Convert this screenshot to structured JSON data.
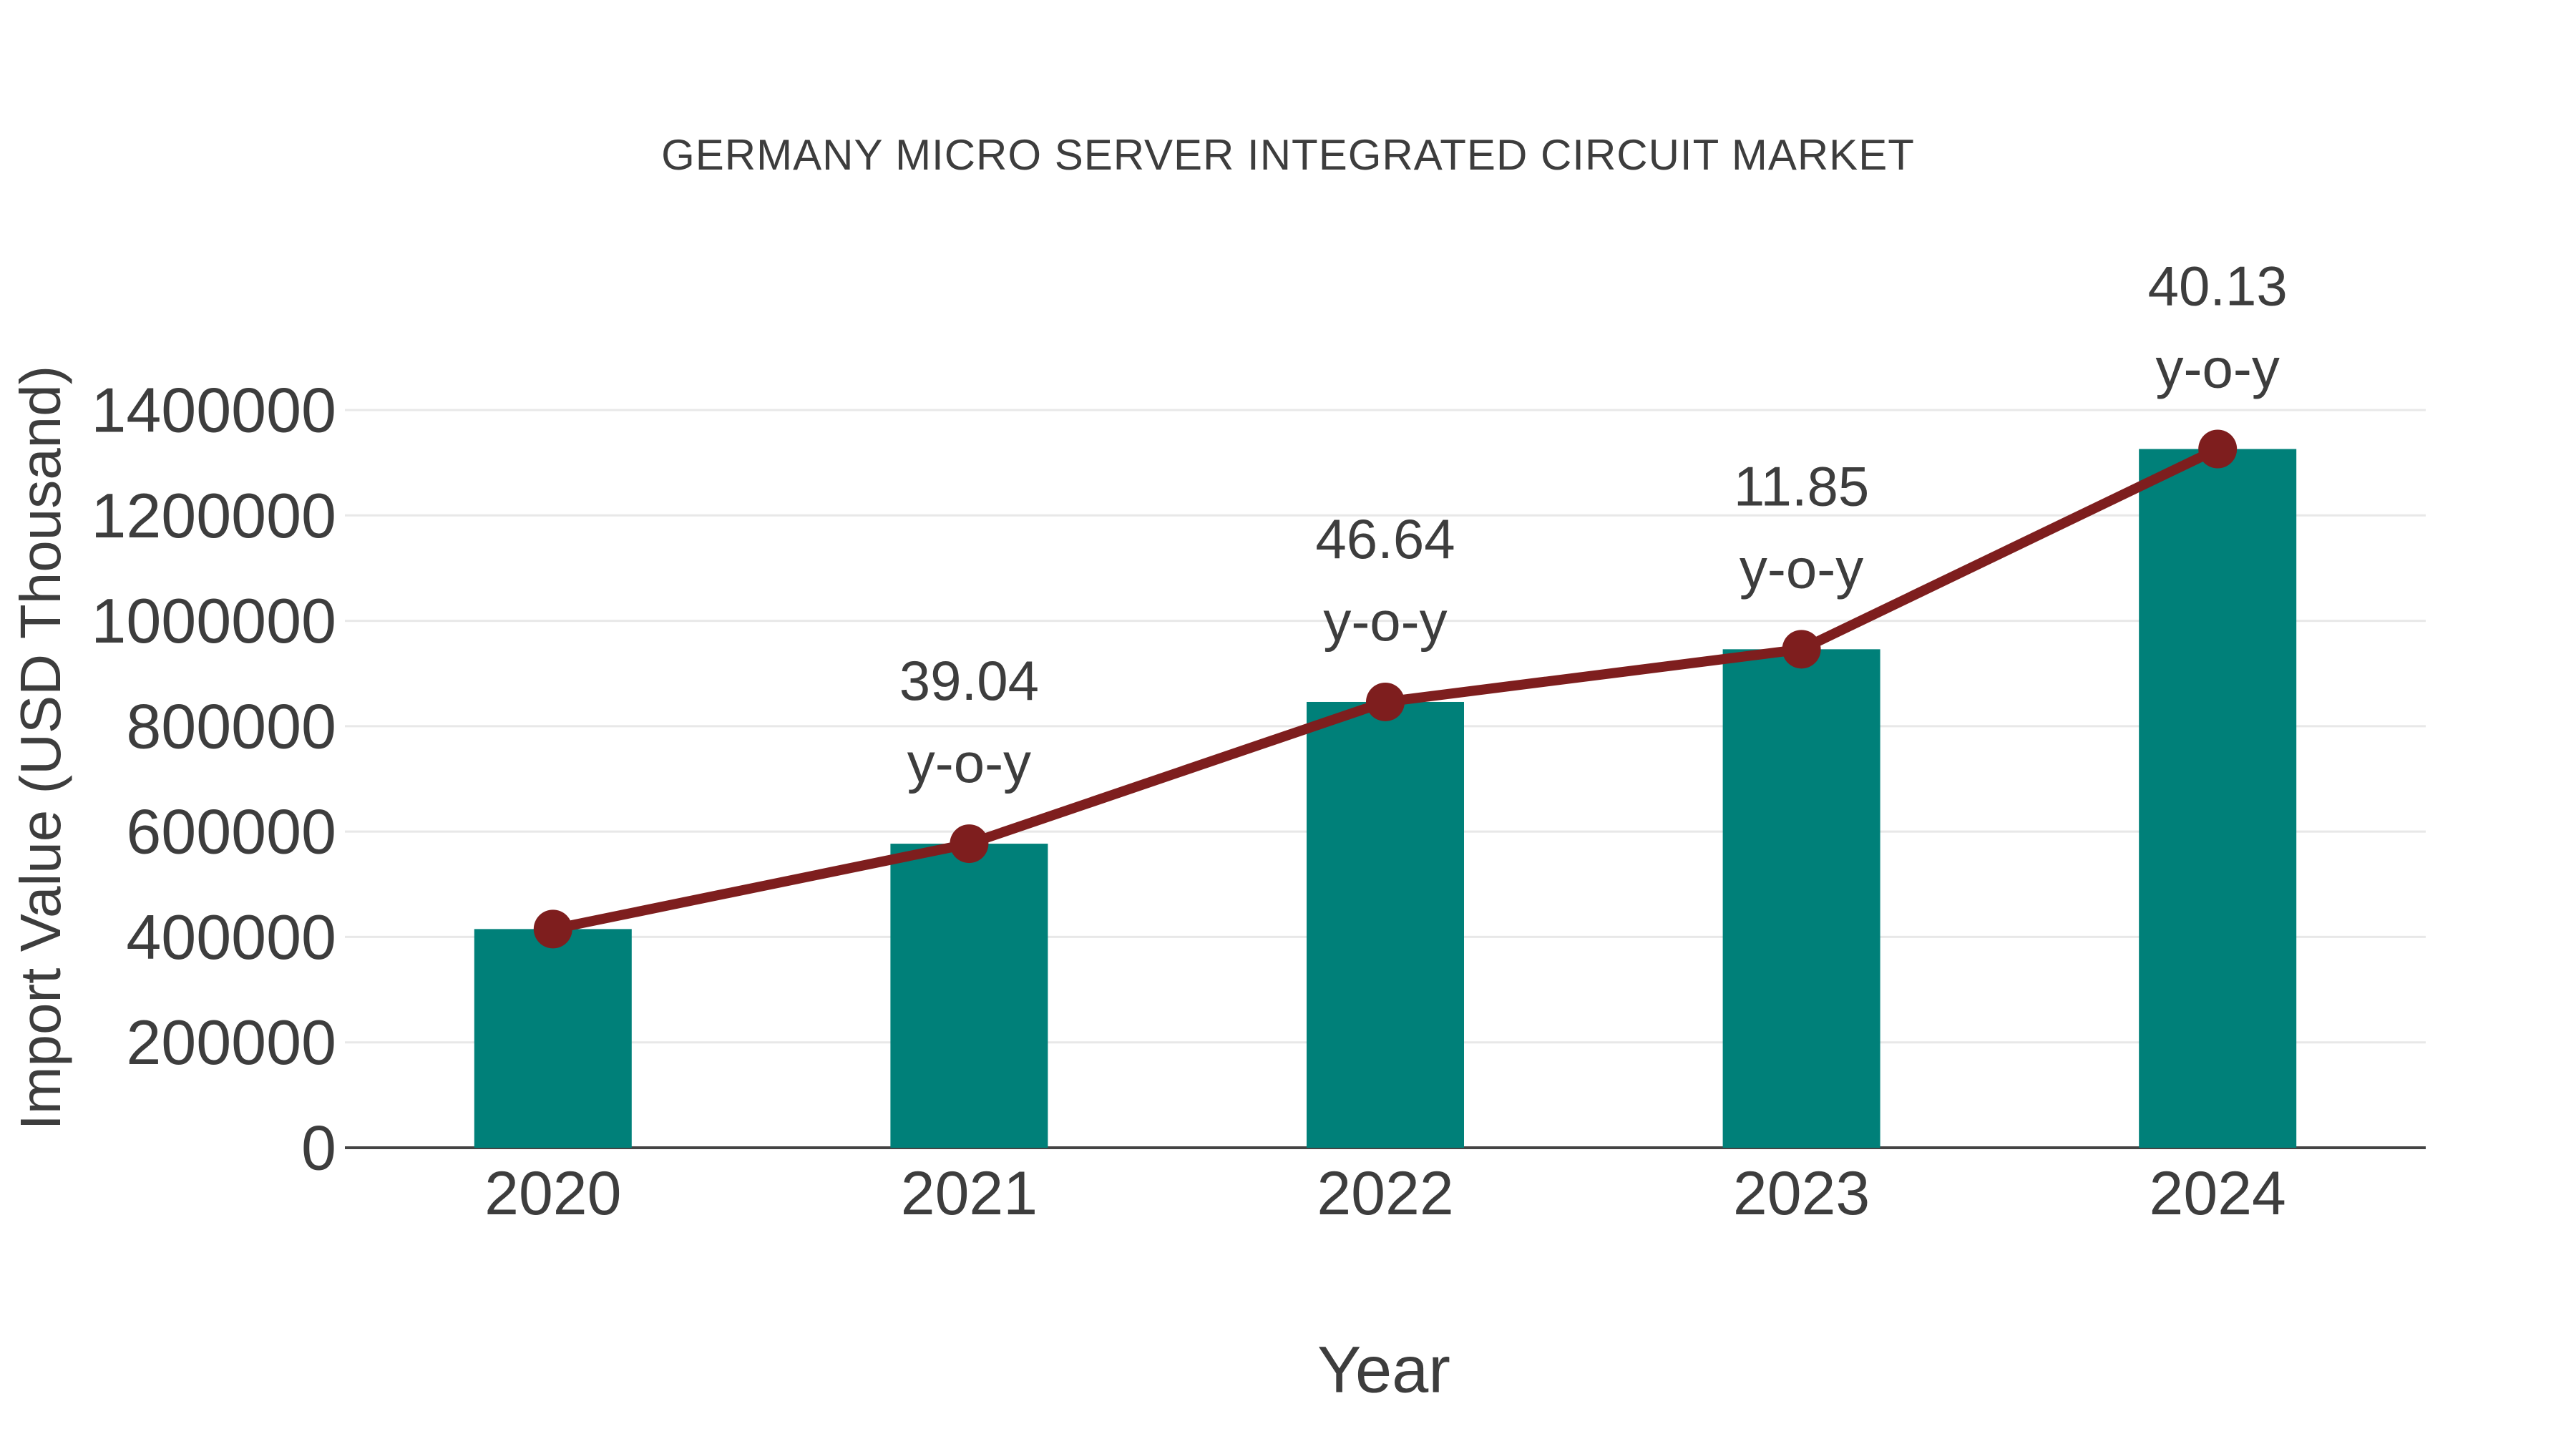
{
  "chart_data": {
    "type": "bar",
    "title": "GERMANY MICRO SERVER INTEGRATED CIRCUIT MARKET",
    "xlabel": "Year",
    "ylabel": "Import Value (USD Thousand)",
    "categories": [
      "2020",
      "2021",
      "2022",
      "2023",
      "2024"
    ],
    "values": [
      415000,
      577000,
      846000,
      946000,
      1326000
    ],
    "ylim": [
      0,
      1400000
    ],
    "yticks": [
      0,
      200000,
      400000,
      600000,
      800000,
      1000000,
      1200000,
      1400000
    ],
    "grid": true,
    "legend_position": "none",
    "overlay_line": {
      "type": "line",
      "follows_bar_tops": true,
      "annotations": [
        {
          "category": "2021",
          "value": "39.04",
          "label": "y-o-y"
        },
        {
          "category": "2022",
          "value": "46.64",
          "label": "y-o-y"
        },
        {
          "category": "2023",
          "value": "11.85",
          "label": "y-o-y"
        },
        {
          "category": "2024",
          "value": "40.13",
          "label": "y-o-y"
        }
      ]
    },
    "colors": {
      "bar": "#008079",
      "line": "#7E1E1E",
      "marker": "#7E1E1E",
      "text": "#3D3D3D",
      "grid": "#E8E8E8",
      "axis": "#444444",
      "background": "#FFFFFF"
    }
  }
}
